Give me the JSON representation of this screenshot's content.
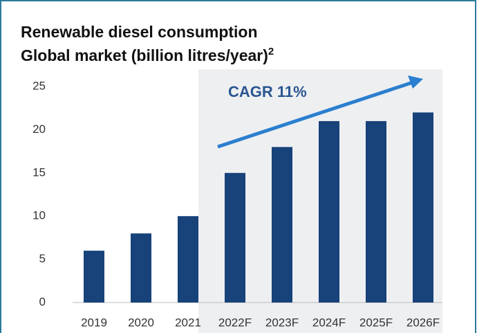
{
  "chart_data": {
    "type": "bar",
    "title": "Renewable diesel consumption",
    "subtitle": "Global market (billion litres/year)",
    "subtitle_superscript": "2",
    "annotation": "CAGR 11%",
    "categories": [
      "2019",
      "2020",
      "2021",
      "2022F",
      "2023F",
      "2024F",
      "2025F",
      "2026F"
    ],
    "values": [
      6,
      8,
      10,
      15,
      18,
      21,
      21,
      22
    ],
    "color": "#17427a",
    "ylim": [
      0,
      25
    ],
    "yticks": [
      0,
      5,
      10,
      15,
      20,
      25
    ],
    "grid": false
  }
}
